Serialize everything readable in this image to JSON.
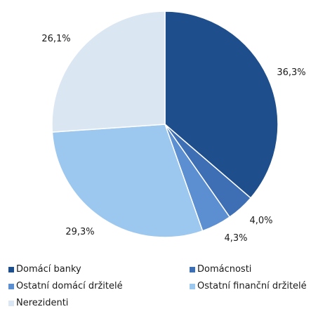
{
  "chart_data": {
    "type": "pie",
    "title": "",
    "categories": [
      "Domácí banky",
      "Domácnosti",
      "Ostatní domácí držitelé",
      "Ostatní finanční držitelé",
      "Nerezidenti"
    ],
    "values": [
      36.3,
      4.0,
      4.3,
      29.3,
      26.1
    ],
    "value_labels": [
      "36,3%",
      "4,0%",
      "4,3%",
      "29,3%",
      "26,1%"
    ],
    "colors": [
      "#1f4e8c",
      "#3e6fb5",
      "#5b8fd1",
      "#9cc7ee",
      "#dbe6f3"
    ],
    "start_angle": "12 o'clock",
    "direction": "clockwise",
    "legend_position": "bottom"
  }
}
